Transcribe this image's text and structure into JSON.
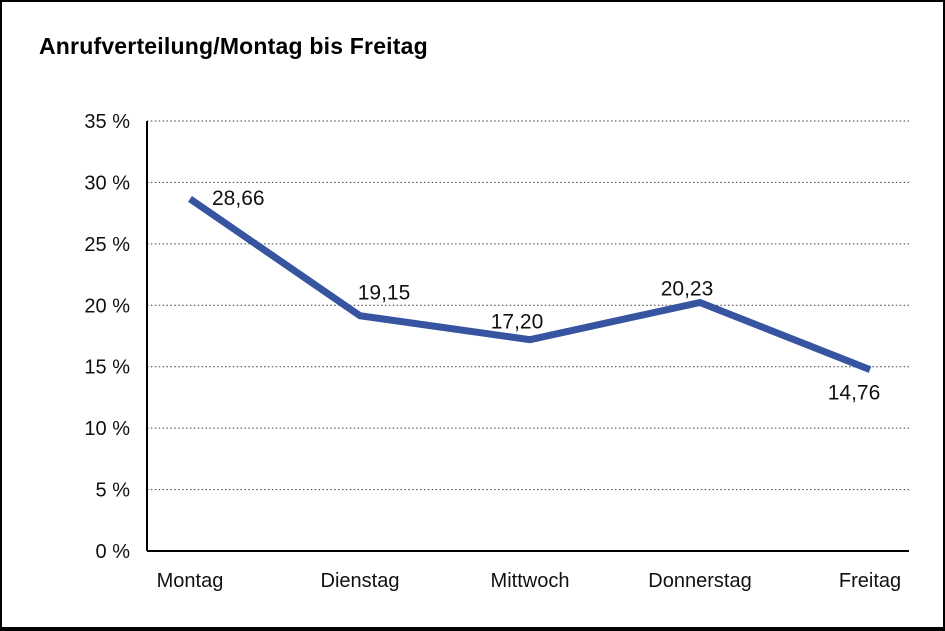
{
  "window": {
    "background_color": "#ffffff",
    "border_color": "#000000"
  },
  "chart_data": {
    "type": "line",
    "title": "Anrufverteilung/Montag bis Freitag",
    "categories": [
      "Montag",
      "Dienstag",
      "Mittwoch",
      "Donnerstag",
      "Freitag"
    ],
    "series": [
      {
        "name": "Anrufverteilung",
        "values": [
          28.66,
          19.15,
          17.2,
          20.23,
          14.76
        ]
      }
    ],
    "point_labels": [
      "28,66",
      "19,15",
      "17,20",
      "20,23",
      "14,76"
    ],
    "y_ticks": [
      {
        "value": 0,
        "label": "0 %"
      },
      {
        "value": 5,
        "label": "5 %"
      },
      {
        "value": 10,
        "label": "10 %"
      },
      {
        "value": 15,
        "label": "15 %"
      },
      {
        "value": 20,
        "label": "20 %"
      },
      {
        "value": 25,
        "label": "25 %"
      },
      {
        "value": 30,
        "label": "30 %"
      },
      {
        "value": 35,
        "label": "35 %"
      }
    ],
    "ylim": [
      0,
      35
    ],
    "xlabel": "",
    "ylabel": "",
    "grid": "horizontal-dotted",
    "legend": "none",
    "line_color": "#36549F",
    "text_color": "#111111"
  }
}
